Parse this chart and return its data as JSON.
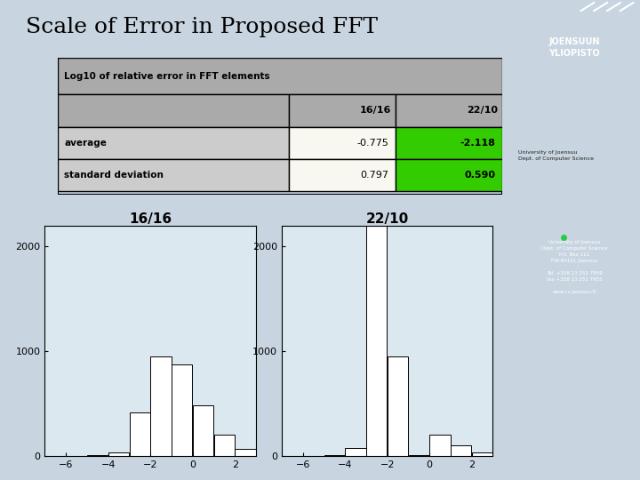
{
  "title": "Scale of Error in Proposed FFT",
  "title_fontsize": 18,
  "bg_color": "#c8d4e0",
  "right_panel_color": "#5533aa",
  "table_header": "Log10 of relative error in FFT elements",
  "col_header_bg": "#aaaaaa",
  "row_label_bg": "#cccccc",
  "data_bg": "#ffffff",
  "green_bg": "#33cc00",
  "hist1_title": "16/16",
  "hist2_title": "22/10",
  "hist1_counts": [
    0,
    2,
    8,
    30,
    420,
    950,
    870,
    480,
    200,
    70,
    5
  ],
  "hist2_counts": [
    0,
    2,
    5,
    80,
    2200,
    950,
    10,
    200,
    100,
    30,
    5
  ],
  "bins": [
    -7,
    -6,
    -5,
    -4,
    -3,
    -2,
    -1,
    0,
    1,
    2,
    3
  ],
  "ylim": [
    0,
    2200
  ],
  "yticks": [
    0,
    1000,
    2000
  ],
  "xticks": [
    -6,
    -4,
    -2,
    0,
    2
  ],
  "hist_bg": "#dce8f0"
}
